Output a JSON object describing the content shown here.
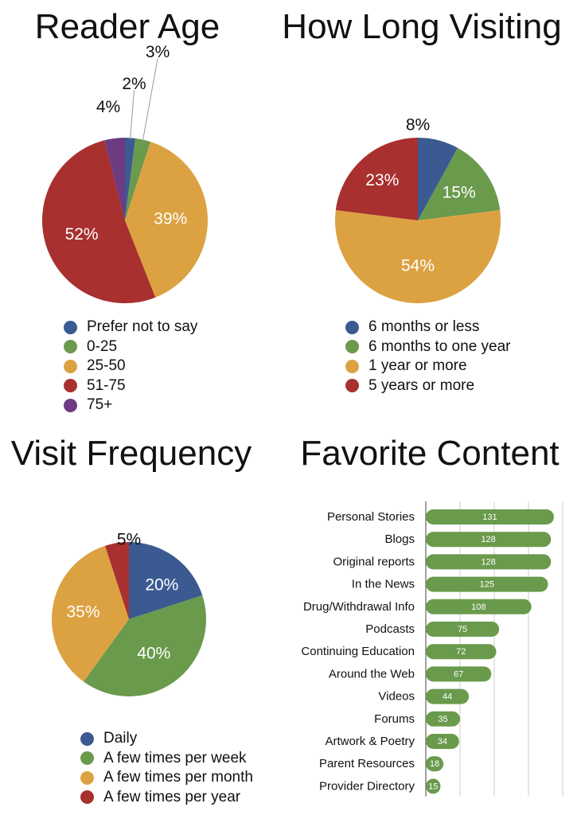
{
  "colors": {
    "blue": "#3b5a92",
    "green": "#6a9a4c",
    "orange": "#dca242",
    "red": "#a8302f",
    "purple": "#6e3a82",
    "bar": "#6a9a4c",
    "grid": "#cccccc"
  },
  "chart_data": [
    {
      "type": "pie",
      "title": "Reader Age",
      "slices": [
        {
          "label": "Prefer not to say",
          "value": 2,
          "display": "2%",
          "color": "#3b5a92"
        },
        {
          "label": "0-25",
          "value": 3,
          "display": "3%",
          "color": "#6a9a4c"
        },
        {
          "label": "25-50",
          "value": 39,
          "display": "39%",
          "color": "#dca242"
        },
        {
          "label": "51-75",
          "value": 52,
          "display": "52%",
          "color": "#a8302f"
        },
        {
          "label": "75+",
          "value": 4,
          "display": "4%",
          "color": "#6e3a82"
        }
      ],
      "legend_position": "bottom"
    },
    {
      "type": "pie",
      "title": "How Long Visiting",
      "slices": [
        {
          "label": "6 months or less",
          "value": 8,
          "display": "8%",
          "color": "#3b5a92"
        },
        {
          "label": "6 months to one year",
          "value": 15,
          "display": "15%",
          "color": "#6a9a4c"
        },
        {
          "label": "1 year or more",
          "value": 54,
          "display": "54%",
          "color": "#dca242"
        },
        {
          "label": "5 years or more",
          "value": 23,
          "display": "23%",
          "color": "#a8302f"
        }
      ],
      "legend_position": "bottom"
    },
    {
      "type": "pie",
      "title": "Visit Frequency",
      "slices": [
        {
          "label": "Daily",
          "value": 20,
          "display": "20%",
          "color": "#3b5a92"
        },
        {
          "label": "A few times per week",
          "value": 40,
          "display": "40%",
          "color": "#6a9a4c"
        },
        {
          "label": "A few times per month",
          "value": 35,
          "display": "35%",
          "color": "#dca242"
        },
        {
          "label": "A few times per year",
          "value": 5,
          "display": "5%",
          "color": "#a8302f"
        }
      ],
      "legend_position": "bottom"
    },
    {
      "type": "bar",
      "orientation": "horizontal",
      "title": "Favorite Content",
      "categories": [
        "Personal Stories",
        "Blogs",
        "Original reports",
        "In the News",
        "Drug/Withdrawal Info",
        "Podcasts",
        "Continuing Education",
        "Around the Web",
        "Videos",
        "Forums",
        "Artwork & Poetry",
        "Parent Resources",
        "Provider Directory"
      ],
      "values": [
        131,
        128,
        128,
        125,
        108,
        75,
        72,
        67,
        44,
        35,
        34,
        18,
        15
      ],
      "xlim": [
        0,
        140
      ],
      "grid": true,
      "color": "#6a9a4c"
    }
  ]
}
